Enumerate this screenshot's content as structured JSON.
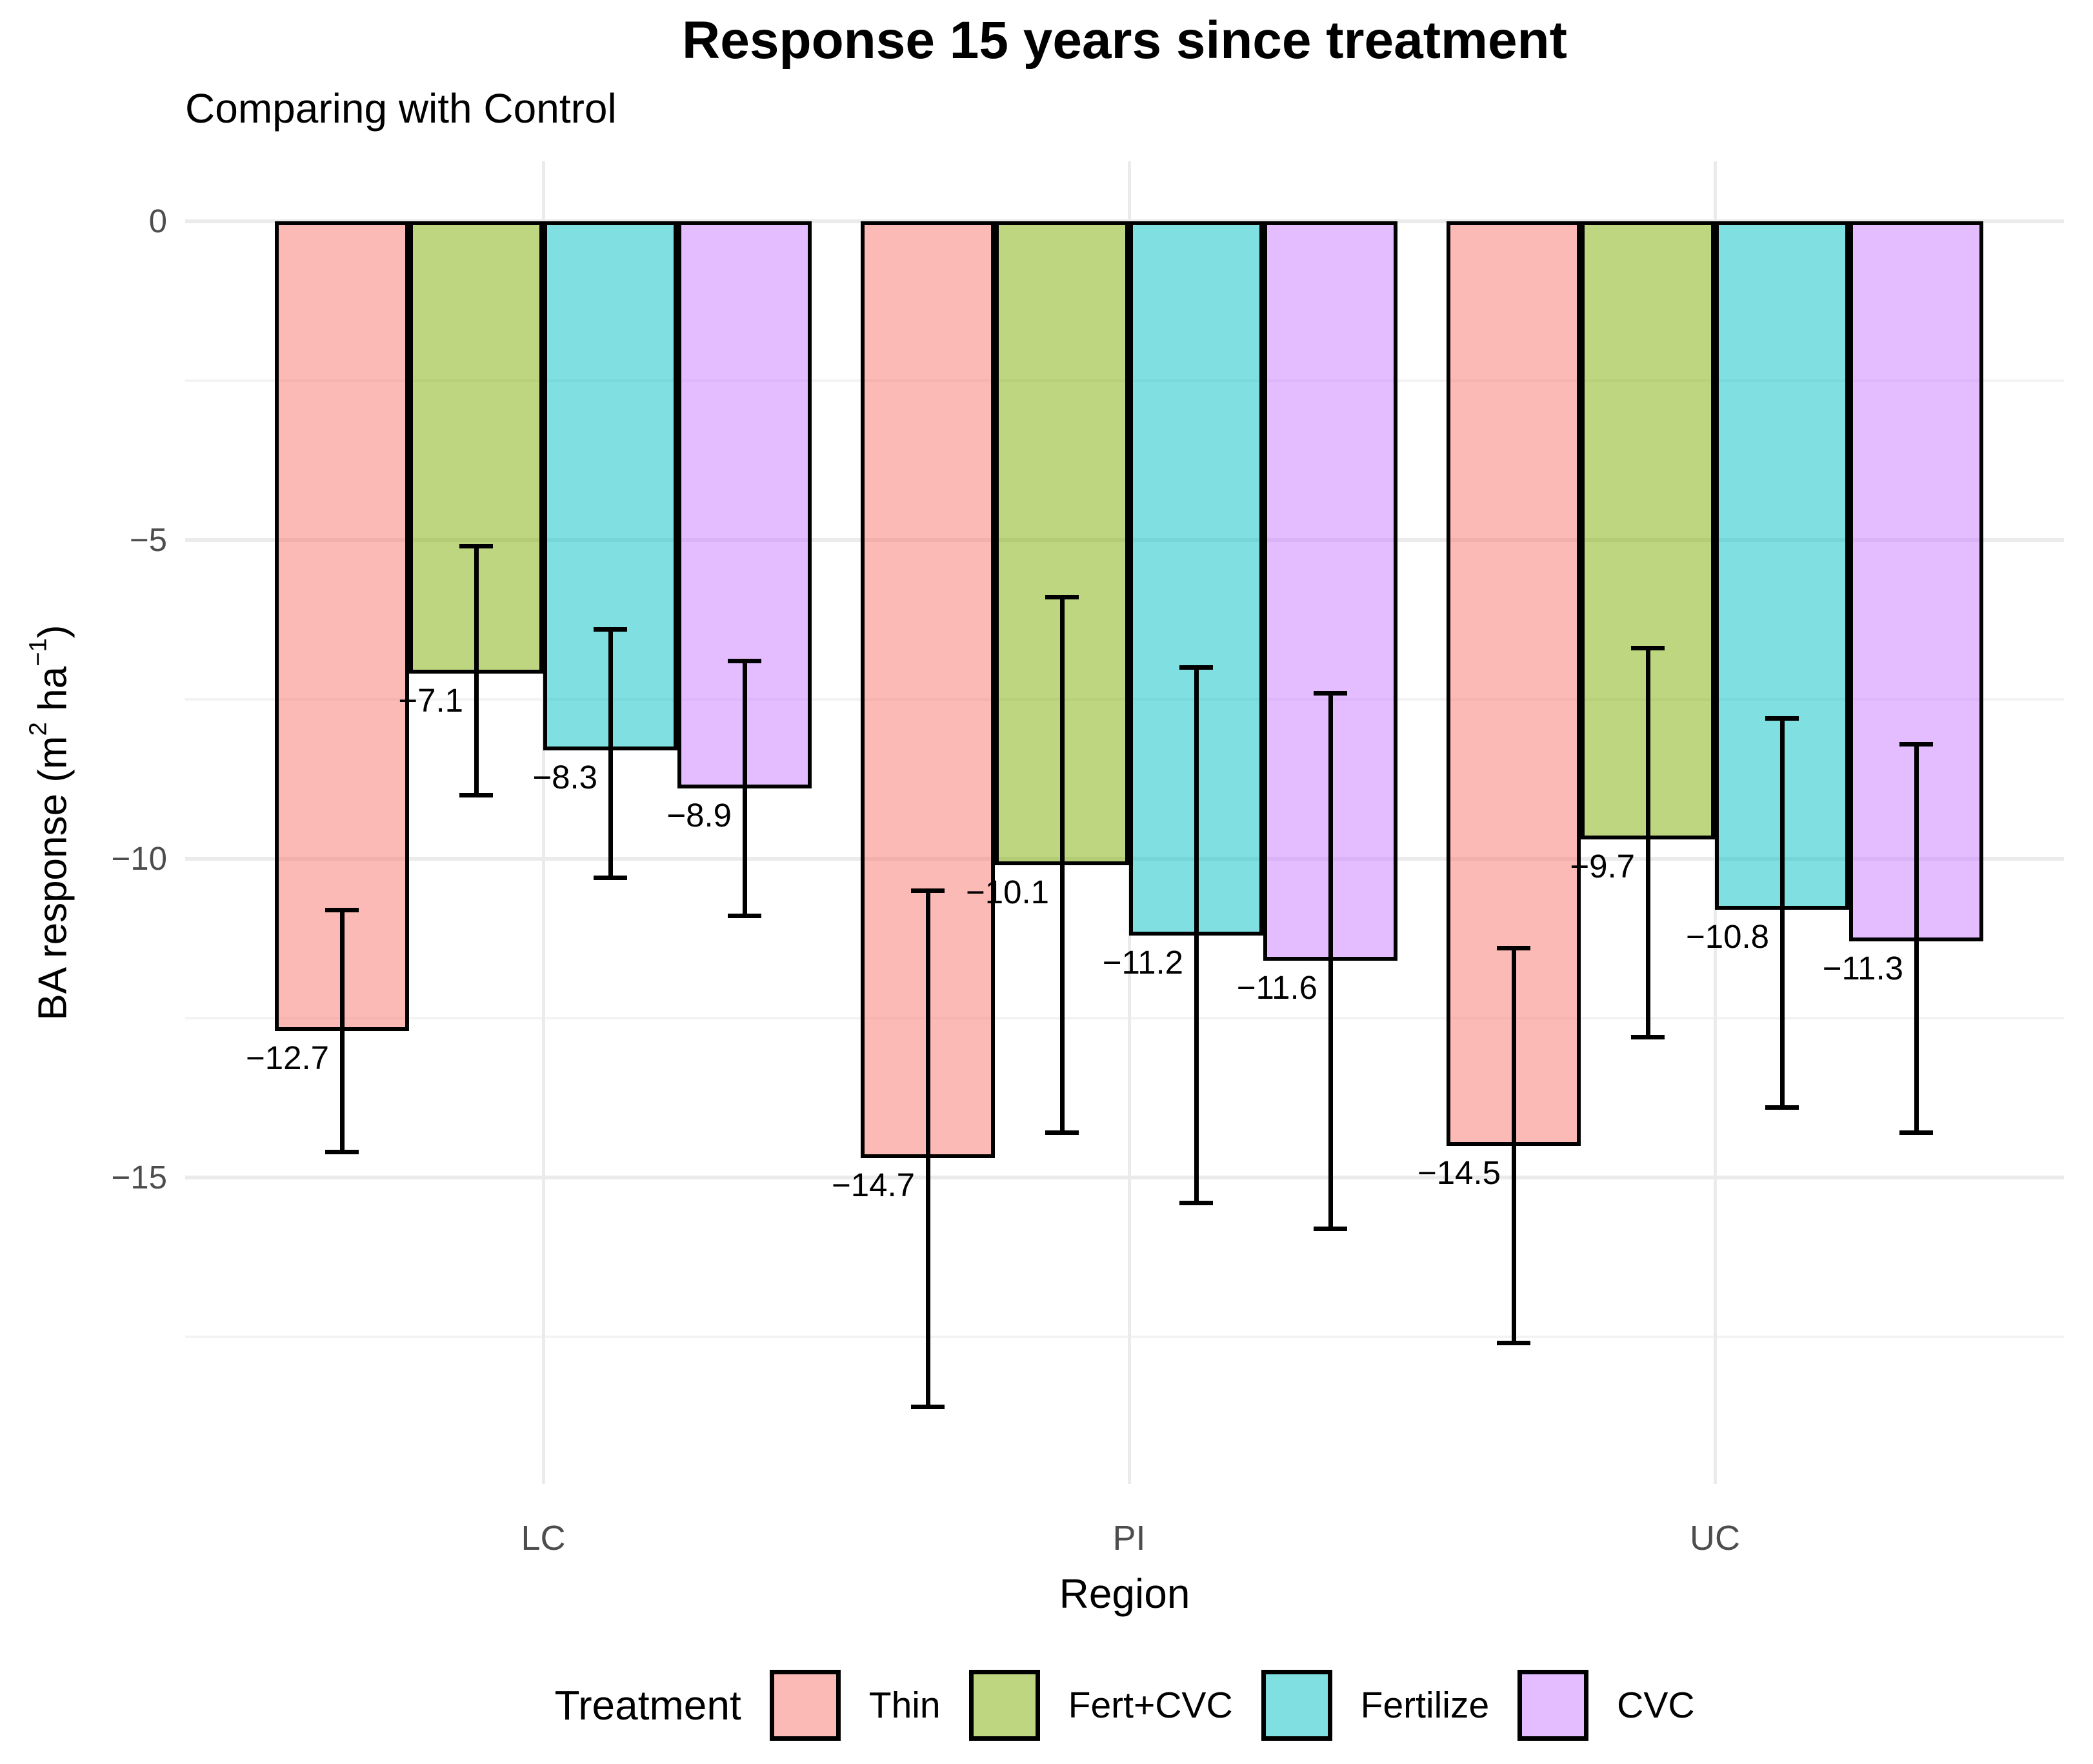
{
  "chart_data": {
    "type": "bar",
    "title": "Response 15 years since treatment",
    "subtitle": "Comparing with Control",
    "xlabel": "Region",
    "ylabel_text": "BA response (m2 ha-1)",
    "ylabel_parts": {
      "pre": "BA response (m",
      "sup1": "2",
      "mid": " ha",
      "sup2": "−1",
      "post": ")"
    },
    "categories": [
      "LC",
      "PI",
      "UC"
    ],
    "series": [
      {
        "name": "Thin",
        "base_color": "#F8766D",
        "fill_alpha": 0.5,
        "values": [
          -12.7,
          -14.7,
          -14.5
        ],
        "value_labels": [
          "−12.7",
          "−14.7",
          "−14.5"
        ],
        "error_high": [
          -10.8,
          -10.5,
          -11.4
        ],
        "error_low": [
          -14.6,
          -18.6,
          -17.6
        ]
      },
      {
        "name": "Fert+CVC",
        "base_color": "#7CAE00",
        "fill_alpha": 0.5,
        "values": [
          -7.1,
          -10.1,
          -9.7
        ],
        "value_labels": [
          "−7.1",
          "−10.1",
          "−9.7"
        ],
        "error_high": [
          -5.1,
          -5.9,
          -6.7
        ],
        "error_low": [
          -9.0,
          -14.3,
          -12.8
        ]
      },
      {
        "name": "Fertilize",
        "base_color": "#00BFC4",
        "fill_alpha": 0.5,
        "values": [
          -8.3,
          -11.2,
          -10.8
        ],
        "value_labels": [
          "−8.3",
          "−11.2",
          "−10.8"
        ],
        "error_high": [
          -6.4,
          -7.0,
          -7.8
        ],
        "error_low": [
          -10.3,
          -15.4,
          -13.9
        ]
      },
      {
        "name": "CVC",
        "base_color": "#C77CFF",
        "fill_alpha": 0.5,
        "values": [
          -8.9,
          -11.6,
          -11.3
        ],
        "value_labels": [
          "−8.9",
          "−11.6",
          "−11.3"
        ],
        "error_high": [
          -6.9,
          -7.4,
          -8.2
        ],
        "error_low": [
          -10.9,
          -15.8,
          -14.3
        ]
      }
    ],
    "y_axis": {
      "ticks": [
        {
          "label": "0",
          "value": 0
        },
        {
          "label": "−5",
          "value": -5
        },
        {
          "label": "−10",
          "value": -10
        },
        {
          "label": "−15",
          "value": -15
        }
      ],
      "minor_ticks": [
        -2.5,
        -7.5,
        -12.5,
        -17.5
      ],
      "ylim": [
        0.9,
        -19.8
      ]
    },
    "legend": {
      "title": "Treatment",
      "position": "bottom"
    },
    "grid": true,
    "style_colors": {
      "bar_border": "#000000",
      "errorbar": "#000000",
      "grid_major": "#EBEBEB",
      "grid_minor": "#F3F3F3",
      "tick_label": "#4D4D4D",
      "text": "#000000",
      "background": "#FFFFFF"
    }
  }
}
